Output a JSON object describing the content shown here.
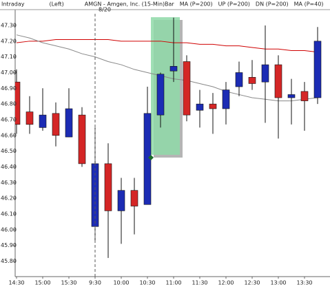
{
  "chart_data": {
    "type": "candlestick",
    "header": [
      {
        "text": "Intraday",
        "color": "#222"
      },
      {
        "text": "(Left)",
        "color": "#222"
      },
      {
        "text": "AMGN - Amgen, Inc. (15-Min)",
        "color": "#222"
      },
      {
        "text": "Bar",
        "color": "#222"
      },
      {
        "text": "MA (P=200)",
        "color": "#d00000"
      },
      {
        "text": "UP (P=200)",
        "color": "#00a000"
      },
      {
        "text": "DN (P=200)",
        "color": "#0000c0"
      },
      {
        "text": "MA (P=40)",
        "color": "#888888"
      }
    ],
    "session_label": "8/20",
    "categories": [
      "14:30",
      null,
      "15:00",
      null,
      "15:30",
      null,
      "9:30",
      null,
      "10:00",
      null,
      "10:30",
      null,
      "11:00",
      null,
      "11:30",
      null,
      "12:00",
      null,
      "12:30",
      null,
      "13:00",
      null,
      "13:30",
      null
    ],
    "open": [
      46.94,
      46.75,
      46.65,
      46.74,
      46.59,
      46.73,
      46.02,
      46.42,
      46.12,
      46.25,
      46.16,
      46.73,
      47.01,
      47.07,
      46.76,
      46.8,
      46.77,
      46.91,
      46.97,
      46.94,
      47.05,
      46.84,
      46.88,
      46.84
    ],
    "high": [
      47.02,
      46.85,
      46.9,
      46.81,
      46.9,
      46.78,
      46.65,
      46.55,
      46.33,
      46.33,
      46.91,
      47.0,
      47.35,
      47.11,
      46.89,
      46.87,
      46.94,
      47.07,
      47.08,
      47.3,
      47.11,
      46.96,
      46.94,
      47.29
    ],
    "low": [
      46.61,
      46.61,
      46.63,
      46.53,
      46.59,
      46.4,
      45.93,
      45.82,
      45.91,
      45.97,
      46.16,
      46.65,
      46.94,
      46.69,
      46.65,
      46.61,
      46.67,
      46.85,
      46.89,
      46.68,
      46.58,
      46.67,
      46.63,
      46.8
    ],
    "close": [
      46.67,
      46.67,
      46.73,
      46.6,
      46.77,
      46.42,
      46.42,
      46.12,
      46.25,
      46.15,
      46.74,
      46.99,
      47.04,
      46.73,
      46.8,
      46.77,
      46.89,
      47.0,
      46.93,
      47.05,
      46.84,
      46.86,
      46.82,
      47.2
    ],
    "up_color": "#1c2cb4",
    "down_color": "#d42626",
    "series": [
      {
        "name": "MA (P=200)",
        "color": "#d00000",
        "values": [
          47.19,
          47.2,
          47.2,
          47.21,
          47.21,
          47.21,
          47.21,
          47.21,
          47.2,
          47.2,
          47.2,
          47.2,
          47.19,
          47.19,
          47.18,
          47.18,
          47.17,
          47.17,
          47.16,
          47.15,
          47.15,
          47.14,
          47.14,
          47.13
        ]
      },
      {
        "name": "MA (P=40)",
        "color": "#888888",
        "values": [
          47.24,
          47.22,
          47.19,
          47.17,
          47.15,
          47.12,
          47.1,
          47.07,
          47.05,
          47.02,
          47.0,
          46.98,
          46.96,
          46.95,
          46.93,
          46.91,
          46.88,
          46.86,
          46.84,
          46.83,
          46.82,
          46.82,
          46.83,
          46.84
        ]
      }
    ],
    "ylim": [
      45.71,
      47.37
    ],
    "yticks": [
      {
        "value": 47.3,
        "label": "47.30"
      },
      {
        "value": 47.2,
        "label": "47.20"
      },
      {
        "value": 47.1,
        "label": "47.10"
      },
      {
        "value": 47.0,
        "label": "47.00"
      },
      {
        "value": 46.9,
        "label": "46.90"
      },
      {
        "value": 46.8,
        "label": "46.80"
      },
      {
        "value": 46.7,
        "label": "46.70"
      },
      {
        "value": 46.6,
        "label": "46.60"
      },
      {
        "value": 46.5,
        "label": "46.50"
      },
      {
        "value": 46.4,
        "label": "46.40"
      },
      {
        "value": 46.3,
        "label": "46.30"
      },
      {
        "value": 46.2,
        "label": "46.20"
      },
      {
        "value": 46.1,
        "label": "46.10"
      },
      {
        "value": 46.0,
        "label": "46.00"
      },
      {
        "value": 45.9,
        "label": "45.90"
      },
      {
        "value": 45.8,
        "label": "45.80"
      }
    ]
  }
}
